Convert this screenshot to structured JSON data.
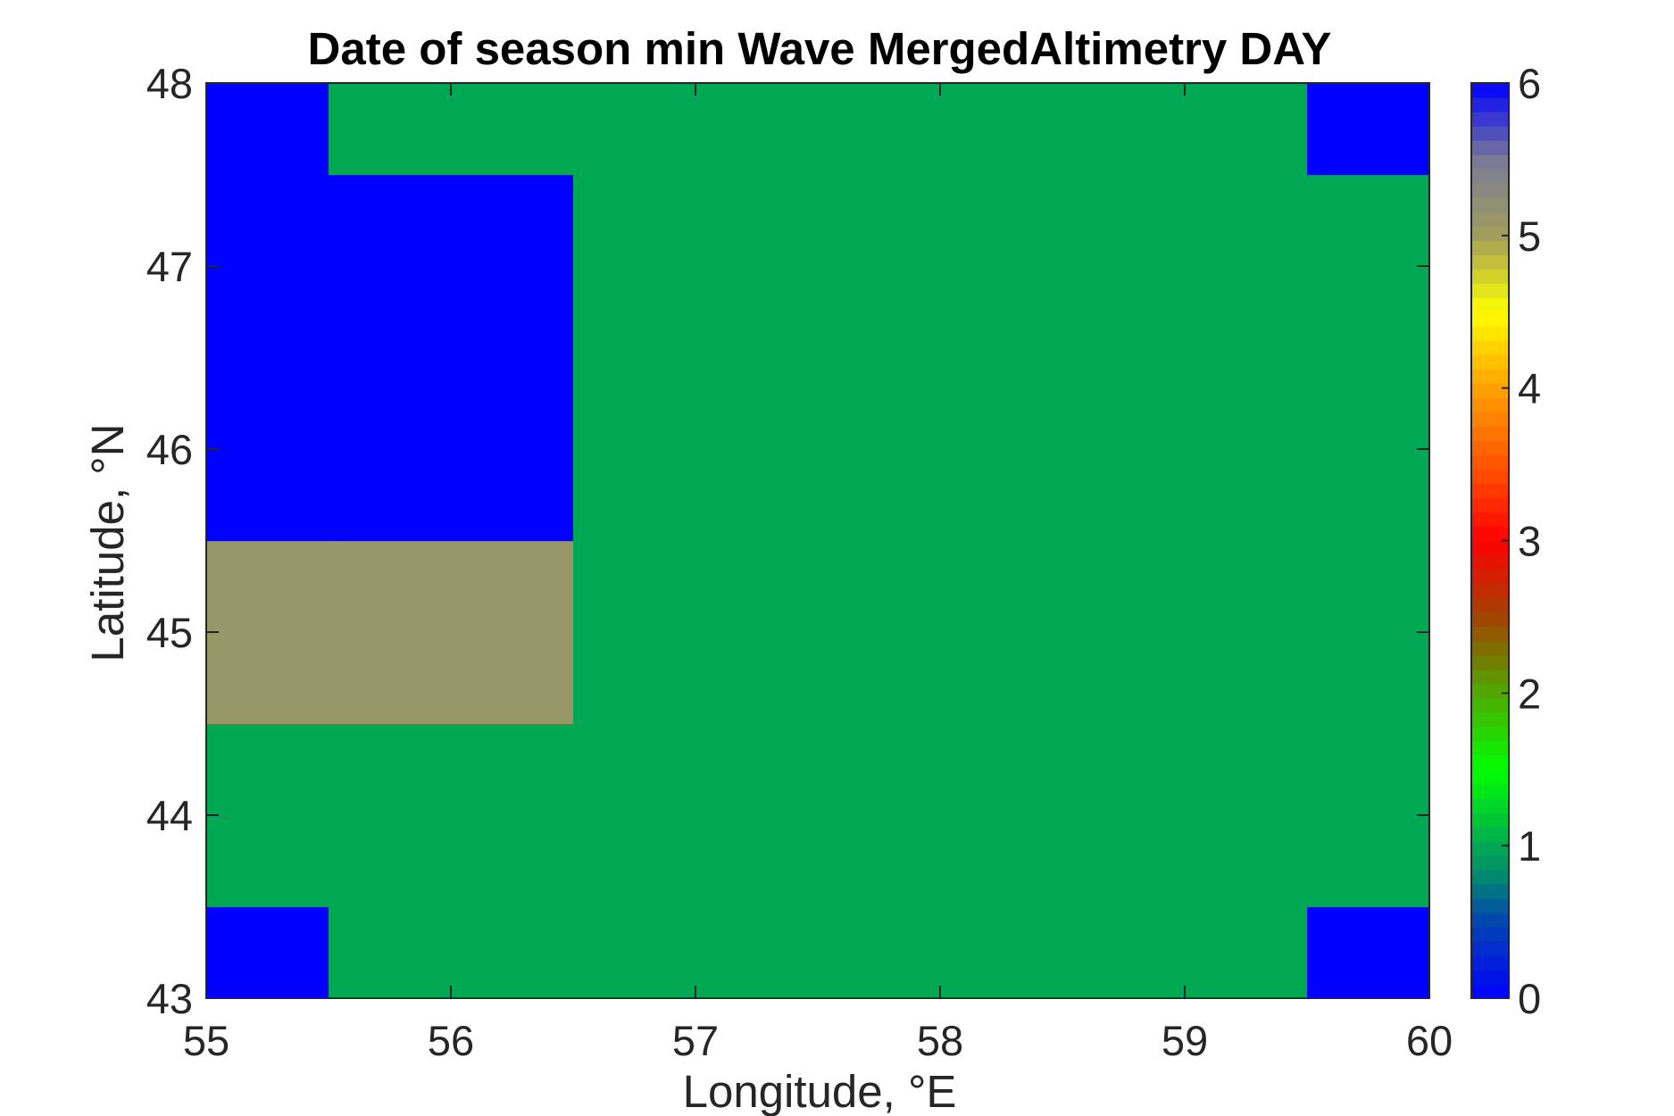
{
  "chart_data": {
    "type": "heatmap",
    "title": "Date of season min Wave MergedAltimetry DAY",
    "xlabel": "Longitude, °E",
    "ylabel": "Latitude, °N",
    "xlim": [
      55,
      60
    ],
    "ylim": [
      43,
      48
    ],
    "xticks": [
      "55",
      "56",
      "57",
      "58",
      "59",
      "60"
    ],
    "yticks": [
      "43",
      "44",
      "45",
      "46",
      "47",
      "48"
    ],
    "x_edges": [
      55,
      55.5,
      56.5,
      57.5,
      58.5,
      59.5,
      60
    ],
    "y_edges": [
      43,
      43.5,
      44.5,
      45.5,
      46.5,
      47.5,
      48
    ],
    "values": [
      [
        6,
        1,
        1,
        1,
        1,
        6
      ],
      [
        1,
        1,
        1,
        1,
        1,
        1
      ],
      [
        5.1,
        5.1,
        1,
        1,
        1,
        1
      ],
      [
        6,
        6,
        1,
        1,
        1,
        1
      ],
      [
        6,
        6,
        1,
        1,
        1,
        1
      ],
      [
        6,
        1,
        1,
        1,
        1,
        6
      ]
    ],
    "colorbar": {
      "clim": [
        0,
        6
      ],
      "ticks": [
        "0",
        "1",
        "2",
        "3",
        "4",
        "5",
        "6"
      ],
      "colormap": [
        [
          0,
          "#0000ff"
        ],
        [
          0.5,
          "#0044b0"
        ],
        [
          0.8,
          "#008870"
        ],
        [
          1.0,
          "#00a854"
        ],
        [
          1.5,
          "#00ff00"
        ],
        [
          2.0,
          "#50a800"
        ],
        [
          2.5,
          "#a04400"
        ],
        [
          3.0,
          "#ff0000"
        ],
        [
          3.5,
          "#ff5500"
        ],
        [
          4.0,
          "#ffa000"
        ],
        [
          4.5,
          "#ffff00"
        ],
        [
          5.0,
          "#a09e5c"
        ],
        [
          5.5,
          "#7a7a98"
        ],
        [
          6.0,
          "#0000ff"
        ]
      ]
    }
  }
}
